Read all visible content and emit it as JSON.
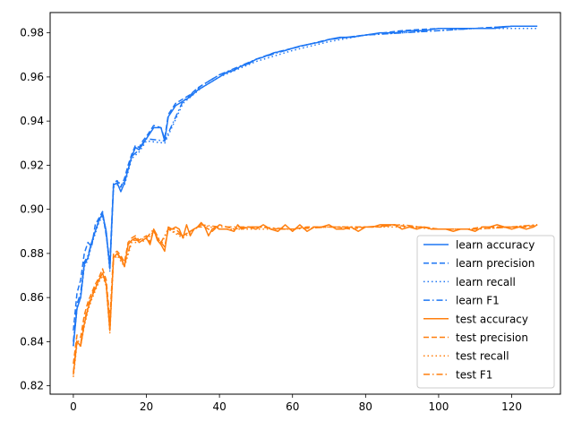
{
  "chart_data": {
    "type": "line",
    "title": "",
    "xlabel": "",
    "ylabel": "",
    "xlim": [
      -6.35,
      133.35
    ],
    "ylim": [
      0.8162,
      0.9892
    ],
    "x_ticks": [
      0,
      20,
      40,
      60,
      80,
      100,
      120
    ],
    "x_tick_labels": [
      "0",
      "20",
      "40",
      "60",
      "80",
      "100",
      "120"
    ],
    "y_ticks": [
      0.82,
      0.84,
      0.86,
      0.88,
      0.9,
      0.92,
      0.94,
      0.96,
      0.98
    ],
    "y_tick_labels": [
      "0.82",
      "0.84",
      "0.86",
      "0.88",
      "0.90",
      "0.92",
      "0.94",
      "0.96",
      "0.98"
    ],
    "grid": false,
    "legend_position": "lower-right",
    "colors": {
      "learn": "#1f77f4",
      "test": "#ff7f0e",
      "axes": "#000000",
      "legend_border": "#cccccc"
    },
    "series": [
      {
        "name": "learn accuracy",
        "group": "learn",
        "style": "solid",
        "x": [
          0,
          1,
          2,
          3,
          4,
          5,
          6,
          7,
          8,
          9,
          10,
          11,
          12,
          13,
          14,
          15,
          16,
          17,
          18,
          19,
          20,
          22,
          24,
          25,
          26,
          28,
          30,
          32,
          34,
          36,
          38,
          40,
          42,
          44,
          46,
          48,
          50,
          52,
          55,
          58,
          60,
          62,
          65,
          68,
          70,
          73,
          76,
          80,
          84,
          88,
          92,
          96,
          100,
          105,
          110,
          115,
          120,
          125,
          127
        ],
        "values": [
          0.838,
          0.855,
          0.86,
          0.875,
          0.878,
          0.885,
          0.89,
          0.895,
          0.898,
          0.89,
          0.873,
          0.911,
          0.912,
          0.908,
          0.912,
          0.918,
          0.924,
          0.928,
          0.927,
          0.93,
          0.932,
          0.937,
          0.937,
          0.931,
          0.942,
          0.947,
          0.949,
          0.951,
          0.954,
          0.956,
          0.958,
          0.96,
          0.962,
          0.963,
          0.965,
          0.966,
          0.968,
          0.969,
          0.971,
          0.972,
          0.973,
          0.974,
          0.975,
          0.976,
          0.977,
          0.978,
          0.978,
          0.979,
          0.98,
          0.98,
          0.981,
          0.981,
          0.982,
          0.982,
          0.982,
          0.982,
          0.983,
          0.983,
          0.983
        ]
      },
      {
        "name": "learn precision",
        "group": "learn",
        "style": "dashed",
        "x": [
          0,
          1,
          2,
          3,
          4,
          5,
          6,
          7,
          8,
          9,
          10,
          11,
          12,
          13,
          14,
          15,
          16,
          17,
          18,
          19,
          20,
          22,
          24,
          25,
          26,
          28,
          30,
          32,
          34,
          36,
          38,
          40,
          45,
          50,
          55,
          60,
          70,
          80,
          90,
          100,
          110,
          120,
          127
        ],
        "values": [
          0.845,
          0.862,
          0.868,
          0.88,
          0.885,
          0.883,
          0.893,
          0.896,
          0.899,
          0.888,
          0.876,
          0.912,
          0.913,
          0.91,
          0.914,
          0.92,
          0.925,
          0.929,
          0.928,
          0.931,
          0.933,
          0.938,
          0.937,
          0.932,
          0.943,
          0.948,
          0.95,
          0.952,
          0.955,
          0.957,
          0.959,
          0.961,
          0.964,
          0.968,
          0.971,
          0.973,
          0.977,
          0.979,
          0.981,
          0.982,
          0.982,
          0.983,
          0.983
        ]
      },
      {
        "name": "learn recall",
        "group": "learn",
        "style": "dotted",
        "x": [
          0,
          1,
          2,
          3,
          4,
          5,
          6,
          7,
          8,
          9,
          10,
          11,
          12,
          14,
          16,
          18,
          20,
          25,
          30,
          35,
          40,
          50,
          60,
          70,
          80,
          90,
          100,
          110,
          120,
          127
        ],
        "values": [
          0.838,
          0.855,
          0.86,
          0.874,
          0.877,
          0.884,
          0.889,
          0.894,
          0.897,
          0.889,
          0.872,
          0.91,
          0.911,
          0.911,
          0.923,
          0.926,
          0.931,
          0.93,
          0.948,
          0.955,
          0.96,
          0.967,
          0.972,
          0.976,
          0.979,
          0.98,
          0.981,
          0.982,
          0.982,
          0.982
        ]
      },
      {
        "name": "learn F1",
        "group": "learn",
        "style": "dashdot",
        "x": [
          0,
          1,
          2,
          3,
          4,
          5,
          6,
          7,
          8,
          9,
          10,
          11,
          12,
          14,
          16,
          18,
          20,
          25,
          30,
          35,
          40,
          50,
          60,
          70,
          80,
          90,
          100,
          110,
          120,
          127
        ],
        "values": [
          0.84,
          0.857,
          0.862,
          0.876,
          0.879,
          0.885,
          0.89,
          0.895,
          0.898,
          0.89,
          0.873,
          0.911,
          0.912,
          0.912,
          0.924,
          0.927,
          0.932,
          0.931,
          0.949,
          0.956,
          0.961,
          0.968,
          0.973,
          0.977,
          0.979,
          0.98,
          0.981,
          0.982,
          0.983,
          0.983
        ]
      },
      {
        "name": "test accuracy",
        "group": "test",
        "style": "solid",
        "x": [
          0,
          1,
          2,
          3,
          4,
          5,
          6,
          7,
          8,
          9,
          10,
          11,
          12,
          13,
          14,
          15,
          16,
          17,
          18,
          19,
          20,
          21,
          22,
          23,
          24,
          25,
          26,
          27,
          28,
          29,
          30,
          31,
          32,
          33,
          34,
          35,
          36,
          37,
          38,
          39,
          40,
          42,
          44,
          45,
          46,
          48,
          50,
          52,
          54,
          56,
          58,
          60,
          62,
          64,
          66,
          68,
          70,
          72,
          74,
          76,
          78,
          80,
          82,
          84,
          86,
          88,
          90,
          92,
          94,
          96,
          98,
          100,
          102,
          104,
          106,
          108,
          110,
          112,
          114,
          116,
          118,
          120,
          122,
          124,
          126,
          127
        ],
        "values": [
          0.825,
          0.84,
          0.838,
          0.848,
          0.855,
          0.86,
          0.864,
          0.868,
          0.871,
          0.866,
          0.845,
          0.878,
          0.88,
          0.878,
          0.874,
          0.884,
          0.886,
          0.887,
          0.885,
          0.886,
          0.887,
          0.884,
          0.891,
          0.886,
          0.884,
          0.881,
          0.892,
          0.891,
          0.892,
          0.891,
          0.887,
          0.893,
          0.888,
          0.891,
          0.892,
          0.894,
          0.892,
          0.888,
          0.891,
          0.892,
          0.891,
          0.891,
          0.89,
          0.893,
          0.891,
          0.892,
          0.891,
          0.893,
          0.891,
          0.89,
          0.893,
          0.89,
          0.893,
          0.89,
          0.892,
          0.892,
          0.893,
          0.891,
          0.891,
          0.892,
          0.89,
          0.892,
          0.892,
          0.893,
          0.893,
          0.893,
          0.891,
          0.892,
          0.891,
          0.892,
          0.891,
          0.891,
          0.891,
          0.89,
          0.891,
          0.891,
          0.89,
          0.892,
          0.892,
          0.893,
          0.892,
          0.891,
          0.892,
          0.891,
          0.892,
          0.893
        ]
      },
      {
        "name": "test precision",
        "group": "test",
        "style": "dashed",
        "x": [
          0,
          1,
          2,
          3,
          4,
          5,
          6,
          7,
          8,
          9,
          10,
          11,
          12,
          13,
          14,
          15,
          16,
          17,
          18,
          19,
          20,
          21,
          22,
          23,
          24,
          25,
          26,
          28,
          30,
          32,
          34,
          36,
          38,
          40,
          44,
          48,
          52,
          56,
          60,
          64,
          68,
          72,
          76,
          80,
          84,
          88,
          92,
          96,
          100,
          104,
          108,
          112,
          116,
          120,
          124,
          127
        ],
        "values": [
          0.83,
          0.843,
          0.842,
          0.852,
          0.858,
          0.862,
          0.866,
          0.869,
          0.873,
          0.868,
          0.85,
          0.88,
          0.881,
          0.879,
          0.876,
          0.885,
          0.887,
          0.888,
          0.886,
          0.887,
          0.888,
          0.885,
          0.891,
          0.887,
          0.885,
          0.883,
          0.891,
          0.891,
          0.888,
          0.89,
          0.892,
          0.892,
          0.89,
          0.893,
          0.891,
          0.892,
          0.892,
          0.891,
          0.891,
          0.892,
          0.892,
          0.892,
          0.891,
          0.892,
          0.892,
          0.893,
          0.892,
          0.892,
          0.891,
          0.891,
          0.891,
          0.892,
          0.892,
          0.892,
          0.892,
          0.893
        ]
      },
      {
        "name": "test recall",
        "group": "test",
        "style": "dotted",
        "x": [
          0,
          1,
          2,
          3,
          4,
          5,
          6,
          7,
          8,
          9,
          10,
          11,
          12,
          14,
          16,
          18,
          20,
          22,
          24,
          26,
          30,
          35,
          40,
          50,
          60,
          70,
          80,
          90,
          100,
          110,
          120,
          127
        ],
        "values": [
          0.824,
          0.839,
          0.838,
          0.847,
          0.854,
          0.859,
          0.863,
          0.867,
          0.87,
          0.865,
          0.844,
          0.877,
          0.879,
          0.874,
          0.885,
          0.885,
          0.886,
          0.89,
          0.884,
          0.891,
          0.887,
          0.893,
          0.891,
          0.891,
          0.891,
          0.892,
          0.892,
          0.892,
          0.891,
          0.891,
          0.892,
          0.893
        ]
      },
      {
        "name": "test F1",
        "group": "test",
        "style": "dashdot",
        "x": [
          0,
          1,
          2,
          3,
          4,
          5,
          6,
          7,
          8,
          9,
          10,
          11,
          12,
          14,
          16,
          18,
          20,
          22,
          24,
          26,
          30,
          35,
          40,
          50,
          60,
          70,
          80,
          90,
          100,
          110,
          120,
          127
        ],
        "values": [
          0.826,
          0.841,
          0.839,
          0.849,
          0.856,
          0.861,
          0.865,
          0.868,
          0.871,
          0.866,
          0.846,
          0.878,
          0.88,
          0.875,
          0.886,
          0.886,
          0.887,
          0.891,
          0.885,
          0.891,
          0.888,
          0.893,
          0.892,
          0.892,
          0.891,
          0.892,
          0.892,
          0.893,
          0.891,
          0.891,
          0.892,
          0.893
        ]
      }
    ]
  }
}
